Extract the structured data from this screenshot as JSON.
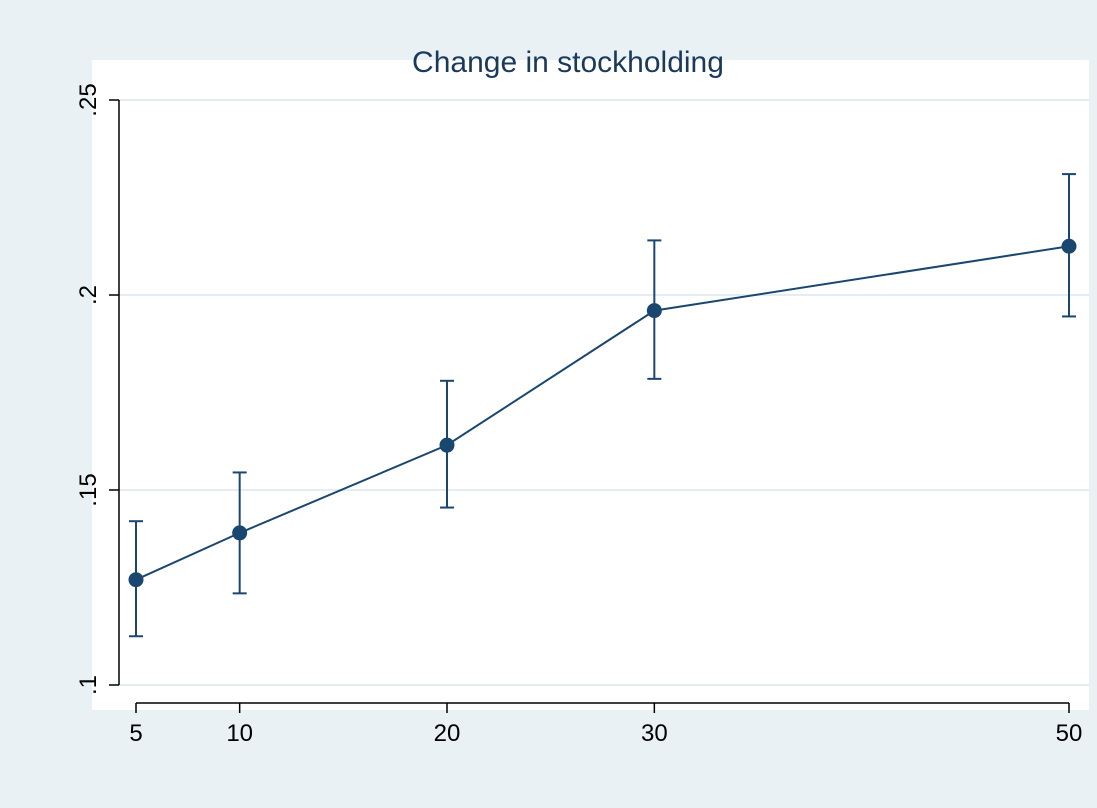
{
  "chart_data": {
    "type": "line",
    "title": "Change in stockholding",
    "xlabel": "",
    "ylabel": "",
    "x": [
      5,
      10,
      20,
      30,
      50
    ],
    "series": [
      {
        "values": [
          0.127,
          0.139,
          0.1615,
          0.196,
          0.2125
        ],
        "ci_low": [
          0.1125,
          0.1235,
          0.1455,
          0.1785,
          0.1945
        ],
        "ci_high": [
          0.142,
          0.1545,
          0.178,
          0.214,
          0.231
        ],
        "color": "#1a476f"
      }
    ],
    "xticks": [
      5,
      10,
      20,
      30,
      50
    ],
    "xtick_labels": [
      "5",
      "10",
      "20",
      "30",
      "50"
    ],
    "yticks": [
      0.1,
      0.15,
      0.2,
      0.25
    ],
    "ytick_labels": [
      ".1",
      ".15",
      ".2",
      ".25"
    ],
    "xlim": [
      5,
      50
    ],
    "ylim": [
      0.1,
      0.25
    ],
    "grid": true,
    "colors": {
      "background": "#eaf1f4",
      "plot_background": "#ffffff",
      "title": "#1a3a5c",
      "series": "#1a476f"
    }
  }
}
